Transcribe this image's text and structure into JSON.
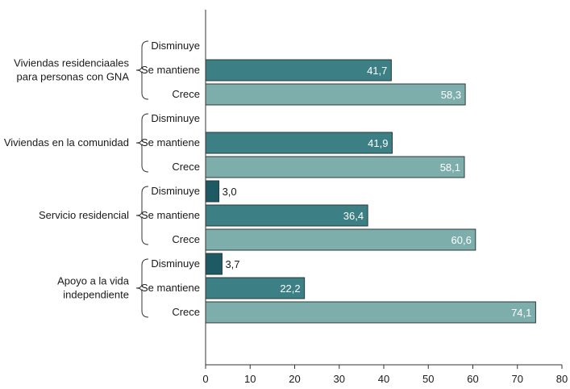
{
  "chart_data": {
    "type": "bar",
    "orientation": "horizontal",
    "xlim": [
      0,
      80
    ],
    "xticks": [
      0,
      10,
      20,
      30,
      40,
      50,
      60,
      70,
      80
    ],
    "grid": false,
    "legend": "none",
    "groups": [
      {
        "label_lines": [
          "Viviendas residenciaales",
          "para personas con GNA"
        ],
        "bars": [
          {
            "category": "Disminuye",
            "value": null,
            "label": ""
          },
          {
            "category": "Se mantiene",
            "value": 41.7,
            "label": "41,7"
          },
          {
            "category": "Crece",
            "value": 58.3,
            "label": "58,3"
          }
        ]
      },
      {
        "label_lines": [
          "Viviendas en la comunidad"
        ],
        "bars": [
          {
            "category": "Disminuye",
            "value": null,
            "label": ""
          },
          {
            "category": "Se mantiene",
            "value": 41.9,
            "label": "41,9"
          },
          {
            "category": "Crece",
            "value": 58.1,
            "label": "58,1"
          }
        ]
      },
      {
        "label_lines": [
          "Servicio residencial"
        ],
        "bars": [
          {
            "category": "Disminuye",
            "value": 3.0,
            "label": "3,0"
          },
          {
            "category": "Se mantiene",
            "value": 36.4,
            "label": "36,4"
          },
          {
            "category": "Crece",
            "value": 60.6,
            "label": "60,6"
          }
        ]
      },
      {
        "label_lines": [
          "Apoyo a la vida",
          "independiente"
        ],
        "bars": [
          {
            "category": "Disminuye",
            "value": 3.7,
            "label": "3,7"
          },
          {
            "category": "Se mantiene",
            "value": 22.2,
            "label": "22,2"
          },
          {
            "category": "Crece",
            "value": 74.1,
            "label": "74,1"
          }
        ]
      }
    ],
    "colors": {
      "Disminuye": "#1d5a63",
      "Se mantiene": "#3c7f85",
      "Crece": "#7eaeac",
      "bar_stroke": "#2a3a3c",
      "axis": "#333333"
    }
  }
}
